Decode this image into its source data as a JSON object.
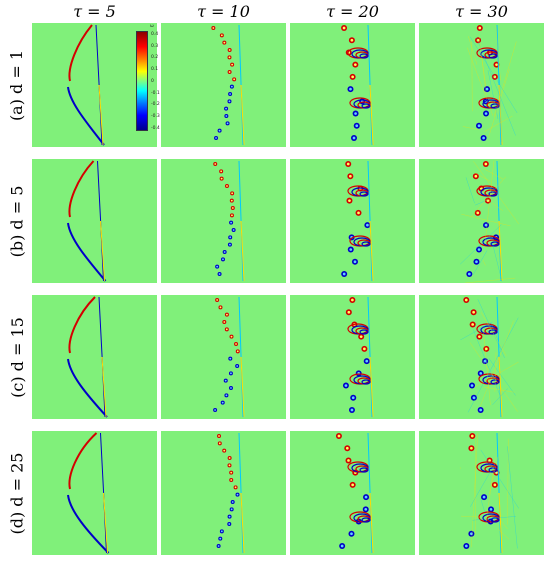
{
  "columns": [
    "τ = 5",
    "τ = 10",
    "τ = 20",
    "τ = 30"
  ],
  "rows": [
    "(a) d = 1",
    "(b) d = 5",
    "(c) d = 15",
    "(d) d = 25"
  ],
  "colorbar": {
    "title": "ω",
    "ticks": [
      "0.4",
      "0.3",
      "0.2",
      "0.1",
      "0",
      "-0.1",
      "-0.2",
      "-0.3",
      "-0.4"
    ]
  },
  "colors": {
    "background_field": "#80f07a",
    "positive": "#d40000",
    "negative": "#0000c8",
    "mid_positive": "#ffdd00",
    "mid_negative": "#00c8ff"
  }
}
